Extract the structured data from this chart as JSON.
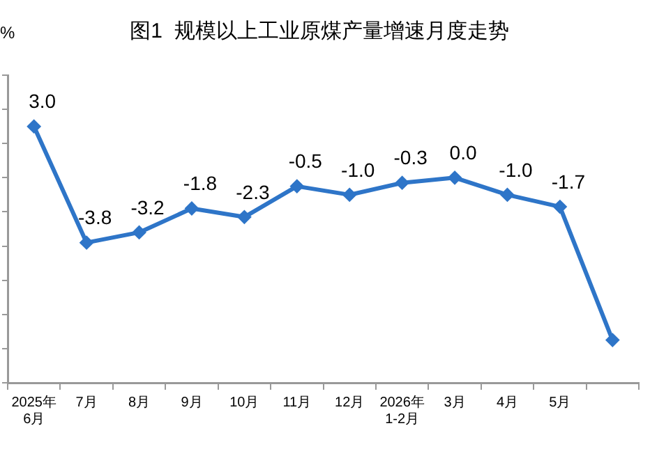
{
  "chart_data": {
    "type": "line",
    "title": "图1  规模以上工业原煤产量增速月度走势",
    "ylabel": "%",
    "categories": [
      "2025年\n6月",
      "7月",
      "8月",
      "9月",
      "10月",
      "11月",
      "12月",
      "2026年\n1-2月",
      "3月",
      "4月",
      "5月",
      null
    ],
    "series": [
      {
        "color": "#2e75c8",
        "values": [
          3.0,
          -3.8,
          -3.2,
          -1.8,
          -2.3,
          -0.5,
          -1.0,
          -0.3,
          0.0,
          -1.0,
          -1.7,
          -9.5
        ],
        "value_labels": [
          "3.0",
          "-3.8",
          "-3.2",
          "-1.8",
          "-2.3",
          "-0.5",
          "-1.0",
          "-0.3",
          "0.0",
          "-1.0",
          "-1.7",
          null
        ]
      }
    ],
    "ylim": [
      -12,
      6
    ],
    "yticks": [
      {
        "value": -12,
        "label": null
      },
      {
        "value": -10,
        "label": null
      },
      {
        "value": -8,
        "label": null
      },
      {
        "value": -6,
        "label": null
      },
      {
        "value": -4,
        "label": null
      },
      {
        "value": -2,
        "label": null
      },
      {
        "value": 0,
        "label": null
      },
      {
        "value": 2,
        "label": null
      },
      {
        "value": 4,
        "label": null
      },
      {
        "value": 6,
        "label": null
      }
    ],
    "grid": false,
    "legend": false,
    "marker": "diamond",
    "line_style": "solid"
  }
}
